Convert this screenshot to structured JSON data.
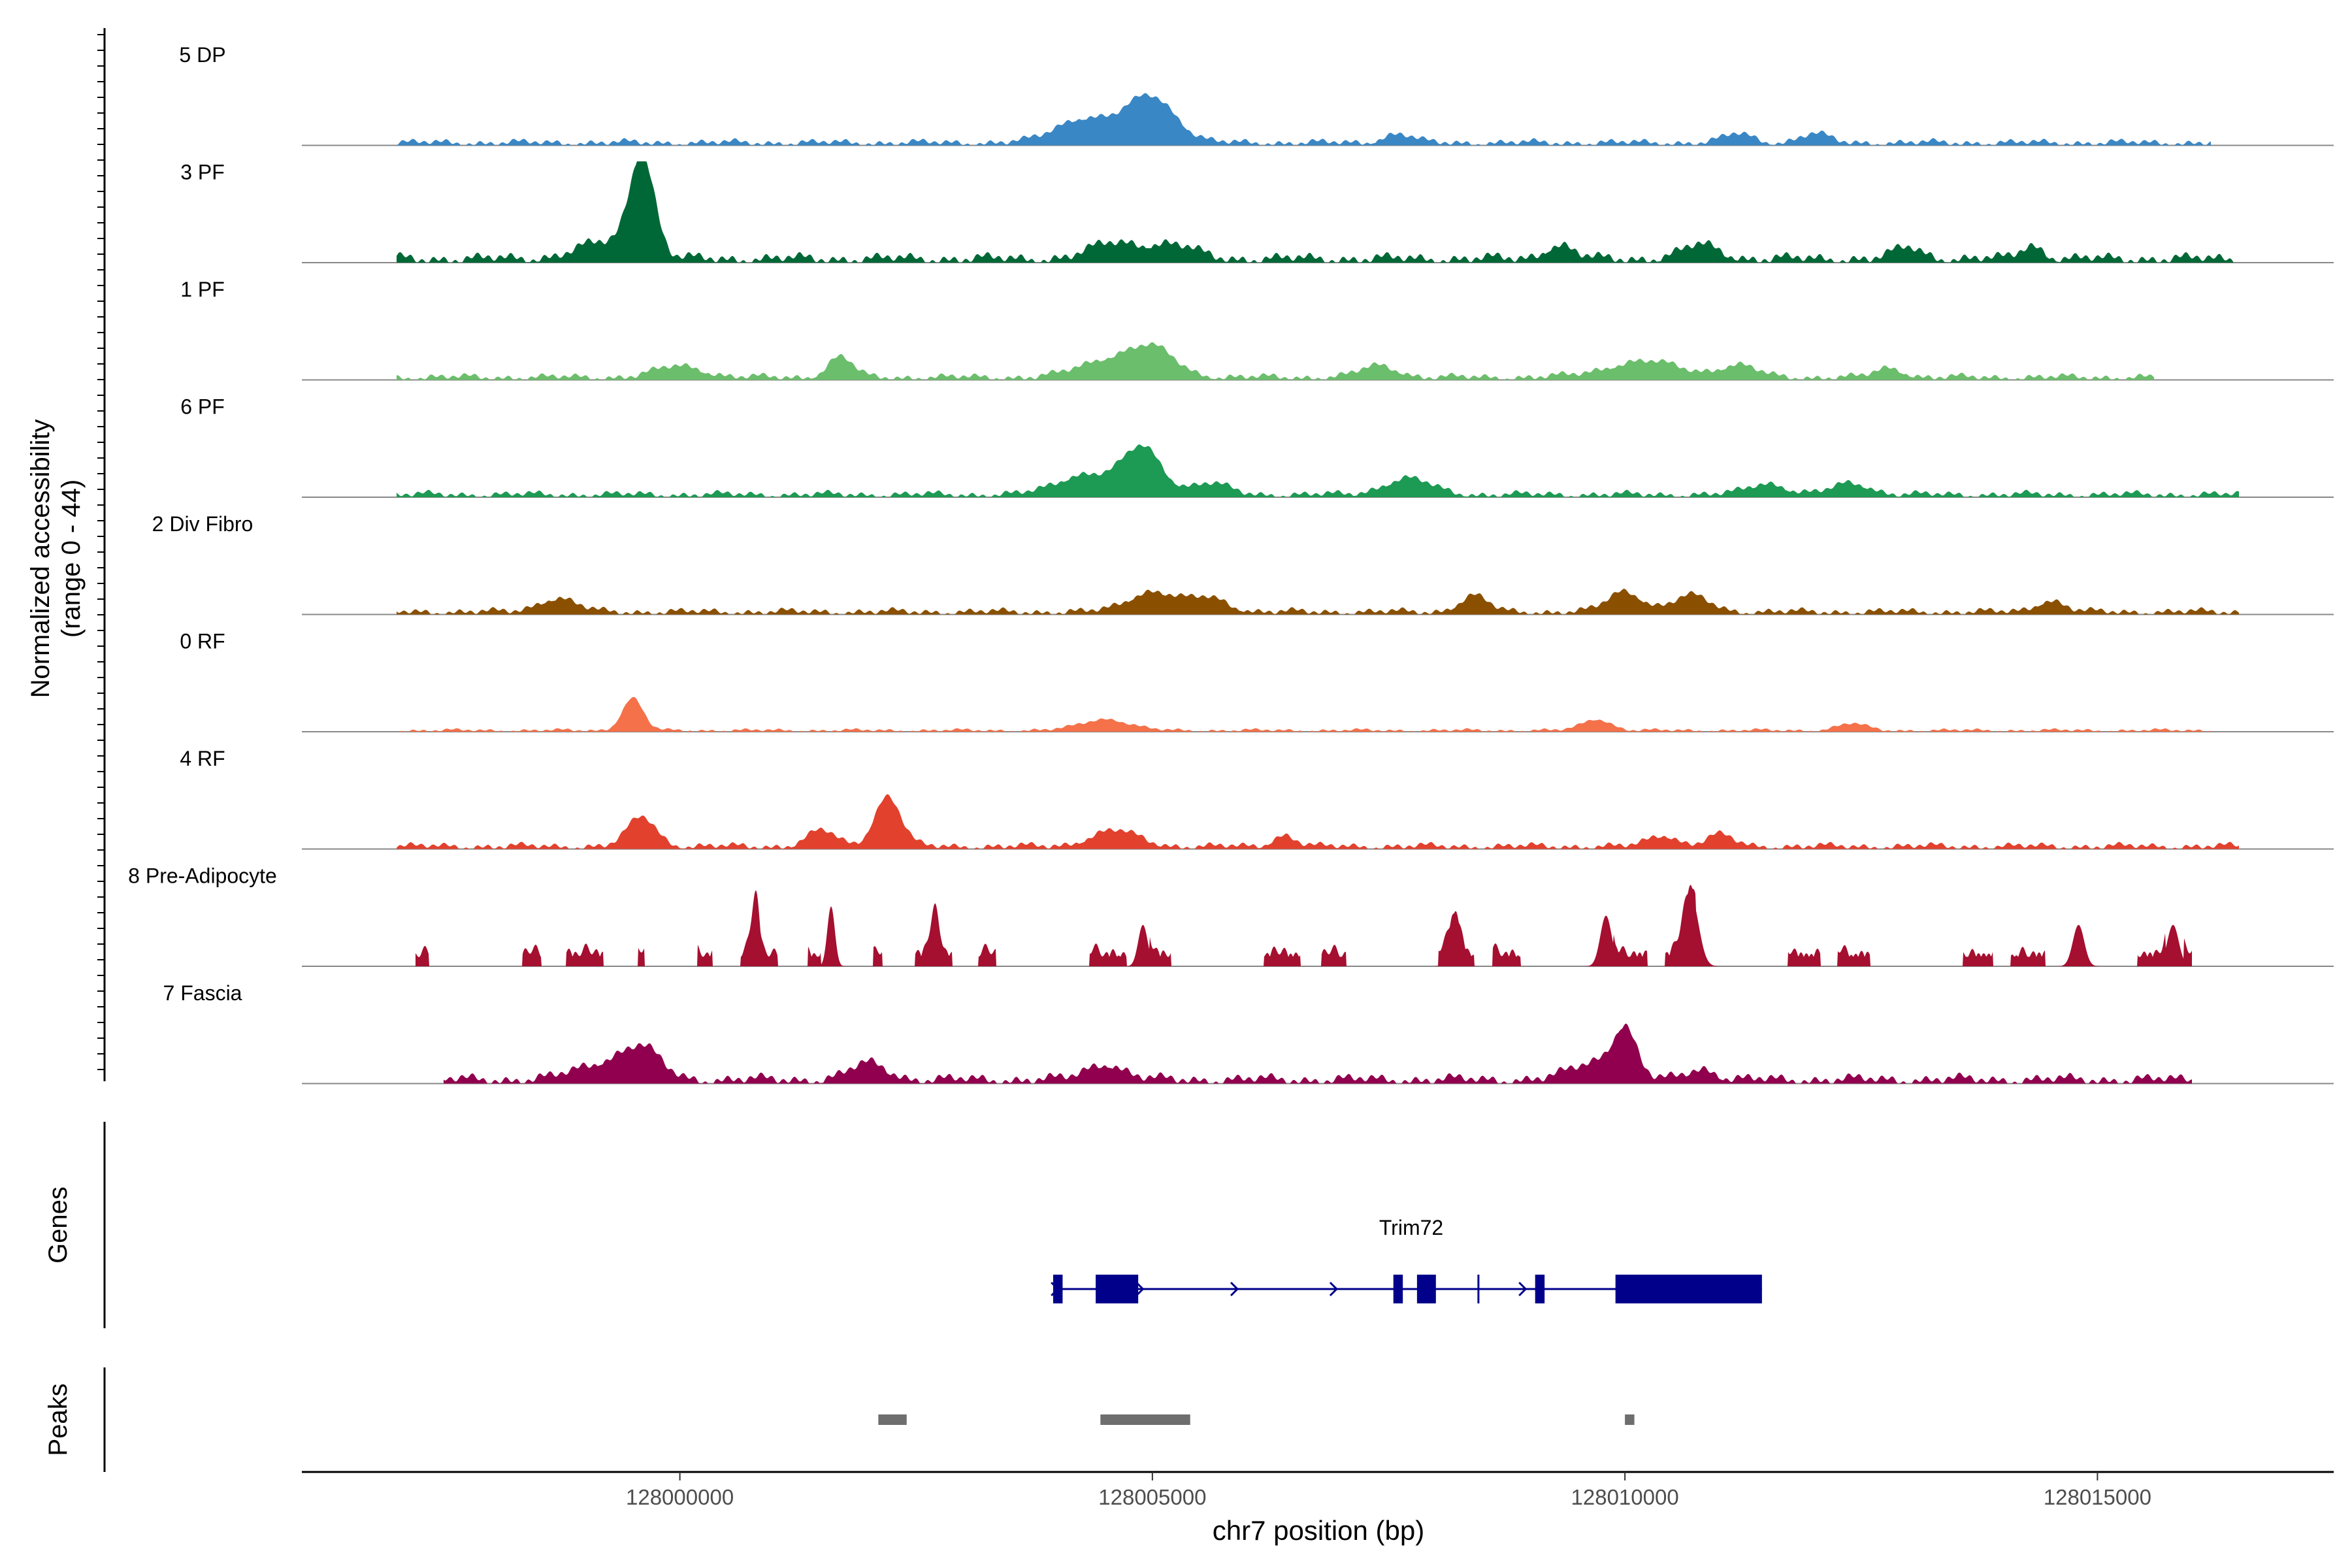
{
  "chart_data": {
    "type": "area",
    "title": "",
    "ylabel_line1": "Normalized accessibility",
    "ylabel_line2": "(range 0 - 44)",
    "xlabel": "chr7 position (bp)",
    "xlim": [
      127996000,
      128017500
    ],
    "ylim": [
      0,
      44
    ],
    "x_ticks": [
      {
        "value": 128000000,
        "label": "128000000"
      },
      {
        "value": 128005000,
        "label": "128005000"
      },
      {
        "value": 128010000,
        "label": "128010000"
      },
      {
        "value": 128015000,
        "label": "128015000"
      }
    ],
    "series": [
      {
        "name": "5 DP",
        "color": "#3A87C5",
        "start": 127997000,
        "end": 128016200,
        "base": 2,
        "peaks": [
          [
            128004500,
            6,
            400
          ],
          [
            128005000,
            18,
            250
          ],
          [
            128004200,
            6,
            250
          ],
          [
            128007600,
            4,
            150
          ],
          [
            128011200,
            4,
            150
          ],
          [
            128012000,
            4,
            150
          ]
        ]
      },
      {
        "name": "3 PF",
        "color": "#006837",
        "start": 127997000,
        "end": 128016500,
        "base": 3,
        "peaks": [
          [
            127999600,
            44,
            130
          ],
          [
            127999200,
            7,
            300
          ],
          [
            128004600,
            7,
            250
          ],
          [
            128005200,
            6,
            250
          ],
          [
            128009300,
            6,
            150
          ],
          [
            128010800,
            6,
            200
          ],
          [
            128013000,
            5,
            150
          ],
          [
            128014300,
            6,
            120
          ]
        ]
      },
      {
        "name": "1 PF",
        "color": "#6BBE6B",
        "start": 127997000,
        "end": 128015600,
        "base": 2,
        "peaks": [
          [
            128000000,
            5,
            250
          ],
          [
            128001700,
            9,
            130
          ],
          [
            128004500,
            7,
            300
          ],
          [
            128005000,
            12,
            250
          ],
          [
            128007400,
            5,
            200
          ],
          [
            128010200,
            7,
            400
          ],
          [
            128011200,
            5,
            200
          ],
          [
            128012800,
            4,
            150
          ]
        ]
      },
      {
        "name": "6 PF",
        "color": "#1D9A53",
        "start": 127997000,
        "end": 128016500,
        "base": 2,
        "peaks": [
          [
            128004900,
            20,
            200
          ],
          [
            128004300,
            9,
            300
          ],
          [
            128005600,
            5,
            200
          ],
          [
            128007700,
            7,
            250
          ],
          [
            128011500,
            5,
            200
          ],
          [
            128012400,
            5,
            200
          ]
        ]
      },
      {
        "name": "2 Div Fibro",
        "color": "#8A5000",
        "start": 127997000,
        "end": 128016500,
        "base": 2,
        "peaks": [
          [
            127998700,
            6,
            200
          ],
          [
            128005000,
            9,
            250
          ],
          [
            128005600,
            6,
            200
          ],
          [
            128008400,
            7,
            150
          ],
          [
            128010000,
            9,
            180
          ],
          [
            128010700,
            7,
            200
          ],
          [
            128014500,
            5,
            150
          ]
        ]
      },
      {
        "name": "0 RF",
        "color": "#F4714A",
        "start": 127997000,
        "end": 128016200,
        "base": 1,
        "peaks": [
          [
            127999500,
            14,
            110
          ],
          [
            128004500,
            5,
            250
          ],
          [
            128009700,
            5,
            150
          ],
          [
            128012400,
            3,
            150
          ]
        ]
      },
      {
        "name": "4 RF",
        "color": "#E2412E",
        "start": 127997000,
        "end": 128016500,
        "base": 2,
        "peaks": [
          [
            128002200,
            22,
            140
          ],
          [
            127999600,
            13,
            150
          ],
          [
            128001500,
            7,
            150
          ],
          [
            128004600,
            7,
            250
          ],
          [
            128006400,
            5,
            120
          ],
          [
            128010400,
            5,
            150
          ],
          [
            128011000,
            5,
            150
          ]
        ]
      },
      {
        "name": "8 Pre-Adipocyte",
        "color": "#A50F30",
        "start": 127997200,
        "end": 128016000,
        "base": 4,
        "peaks": [
          [
            128001600,
            26,
            40
          ],
          [
            128000800,
            26,
            40
          ],
          [
            128002700,
            18,
            50
          ],
          [
            128004900,
            18,
            50
          ],
          [
            128008200,
            19,
            60
          ],
          [
            128010700,
            30,
            80
          ],
          [
            128009800,
            22,
            60
          ],
          [
            128015800,
            18,
            60
          ],
          [
            128014800,
            18,
            60
          ]
        ]
      },
      {
        "name": "7 Fascia",
        "color": "#91004E",
        "start": 127997500,
        "end": 128016000,
        "base": 3,
        "peaks": [
          [
            128010000,
            20,
            120
          ],
          [
            127999600,
            12,
            200
          ],
          [
            127999200,
            7,
            300
          ],
          [
            128002000,
            7,
            200
          ],
          [
            128004500,
            7,
            200
          ],
          [
            128009700,
            8,
            250
          ],
          [
            128010800,
            5,
            150
          ]
        ]
      }
    ],
    "genes_label": "Genes",
    "gene": {
      "name": "Trim72",
      "color": "#00008B",
      "start": 128003950,
      "end": 128011450,
      "strand": "+",
      "exons": [
        [
          128003950,
          128004050
        ],
        [
          128004400,
          128004850
        ],
        [
          128007550,
          128007650
        ],
        [
          128007800,
          128008000
        ],
        [
          128009050,
          128009150
        ],
        [
          128009900,
          128011450
        ]
      ],
      "marker": [
        128008450
      ],
      "arrows": [
        128004000,
        128004900,
        128005900,
        128006950,
        128008950
      ]
    },
    "peaks_label": "Peaks",
    "peaks_color": "#6E6E6E",
    "peaks": [
      [
        128002100,
        128002400
      ],
      [
        128004450,
        128005400
      ],
      [
        128010000,
        128010100
      ]
    ]
  }
}
